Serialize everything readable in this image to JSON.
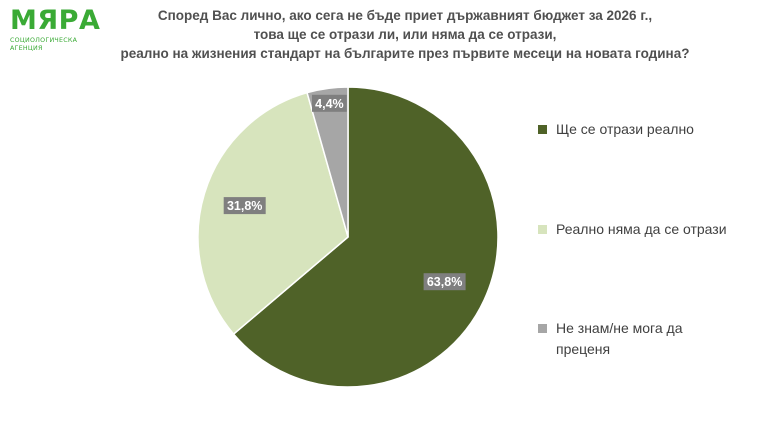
{
  "logo": {
    "name": "МЯРА",
    "tagline": "СОЦИОЛОГИЧЕСКА АГЕНЦИЯ",
    "color": "#3aaa35"
  },
  "chart_data": {
    "type": "pie",
    "title_lines": [
      "Според Вас лично, ако сега не бъде приет държавният бюджет за 2026 г.,",
      "това ще се отрази ли, или няма да се отрази,",
      "реално на жизнения стандарт на българите през първите месеци на новата година?"
    ],
    "slices": [
      {
        "label": "Ще се отрази реално",
        "value": 63.8,
        "display": "63,8%",
        "color": "#4f6228"
      },
      {
        "label": "Реално няма да се отрази",
        "value": 31.8,
        "display": "31,8%",
        "color": "#d7e4bd"
      },
      {
        "label": "Не знам/не мога да преценя",
        "value": 4.4,
        "display": "4,4%",
        "color": "#a6a6a6"
      }
    ],
    "legend_position": "right",
    "data_label_background": "#7f7f7f",
    "data_label_color": "#ffffff"
  }
}
